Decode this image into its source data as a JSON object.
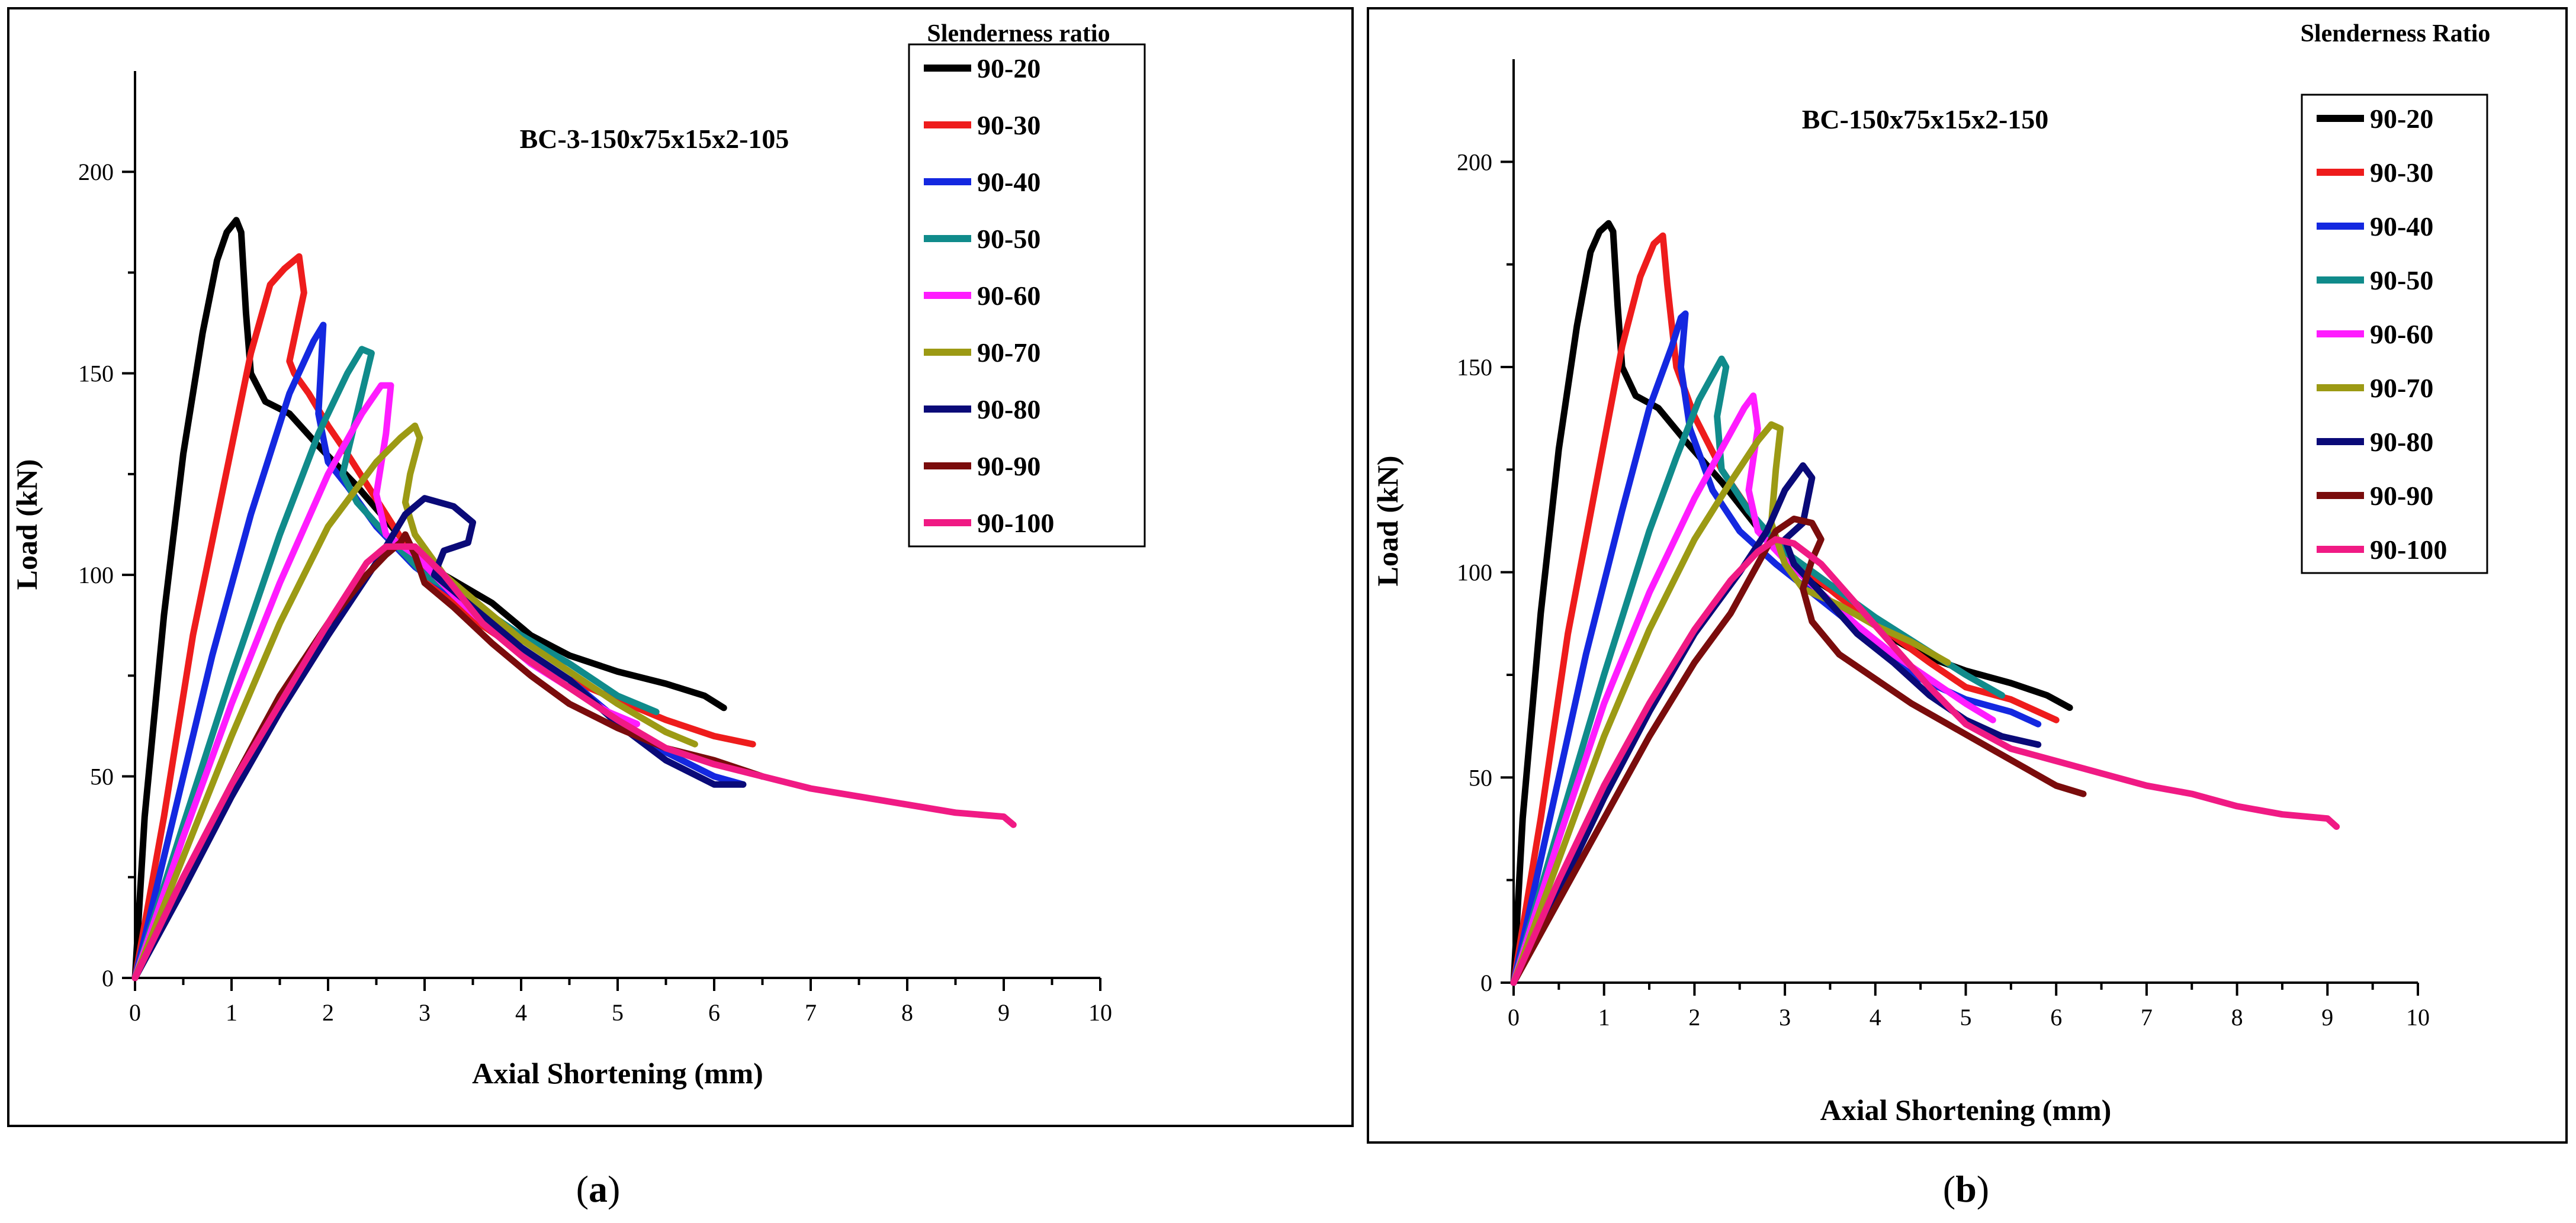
{
  "chart_data": [
    {
      "type": "line",
      "title": "BC-3-150x75x15x2-105",
      "xlabel": "Axial Shortening (mm)",
      "ylabel": "Load (kN)",
      "xlim": [
        0,
        10
      ],
      "ylim": [
        0,
        225
      ],
      "xticks": [
        0,
        1,
        2,
        3,
        4,
        5,
        6,
        7,
        8,
        9,
        10
      ],
      "yticks": [
        0,
        50,
        100,
        150,
        200
      ],
      "legend_title": "Slenderness ratio",
      "legend_position": "top-right",
      "caption": "a",
      "series": [
        {
          "name": "90-20",
          "color": "#000000",
          "x": [
            0,
            0.1,
            0.3,
            0.5,
            0.7,
            0.85,
            0.95,
            1.05,
            1.1,
            1.15,
            1.2,
            1.35,
            1.6,
            1.9,
            2.3,
            2.8,
            3.2,
            3.7,
            4.1,
            4.5,
            5.0,
            5.5,
            5.9,
            6.1
          ],
          "y": [
            0,
            40,
            90,
            130,
            160,
            178,
            185,
            188,
            185,
            165,
            150,
            143,
            140,
            132,
            122,
            108,
            100,
            93,
            85,
            80,
            76,
            73,
            70,
            67
          ]
        },
        {
          "name": "90-30",
          "color": "#ee1c1c",
          "x": [
            0,
            0.3,
            0.6,
            0.9,
            1.2,
            1.4,
            1.55,
            1.7,
            1.75,
            1.6,
            1.65,
            1.8,
            2.0,
            2.2,
            2.6,
            3.0,
            3.5,
            4.0,
            4.5,
            5.0,
            5.5,
            6.0,
            6.4
          ],
          "y": [
            0,
            40,
            85,
            120,
            155,
            172,
            176,
            179,
            170,
            153,
            150,
            145,
            137,
            130,
            115,
            100,
            89,
            81,
            74,
            69,
            64,
            60,
            58
          ]
        },
        {
          "name": "90-40",
          "color": "#1428e0",
          "x": [
            0,
            0.4,
            0.8,
            1.2,
            1.6,
            1.85,
            1.95,
            1.9,
            2.0,
            2.2,
            2.5,
            2.9,
            3.3,
            3.7,
            4.1,
            4.5,
            5.0,
            5.5,
            6.0,
            6.3
          ],
          "y": [
            0,
            40,
            80,
            115,
            145,
            158,
            162,
            140,
            128,
            122,
            112,
            102,
            95,
            88,
            80,
            74,
            64,
            56,
            50,
            48
          ]
        },
        {
          "name": "90-50",
          "color": "#108b8b",
          "x": [
            0,
            0.5,
            1.0,
            1.5,
            1.9,
            2.2,
            2.35,
            2.45,
            2.35,
            2.2,
            2.15,
            2.3,
            2.6,
            3.0,
            3.5,
            4.0,
            4.5,
            5.0,
            5.4
          ],
          "y": [
            0,
            38,
            75,
            110,
            135,
            150,
            156,
            155,
            145,
            130,
            125,
            118,
            110,
            100,
            93,
            85,
            78,
            70,
            66
          ]
        },
        {
          "name": "90-60",
          "color": "#ff1cff",
          "x": [
            0,
            0.5,
            1.0,
            1.5,
            2.0,
            2.35,
            2.55,
            2.65,
            2.6,
            2.5,
            2.6,
            2.9,
            3.3,
            3.7,
            4.1,
            4.5,
            4.9,
            5.2
          ],
          "y": [
            0,
            35,
            68,
            98,
            125,
            140,
            147,
            147,
            135,
            120,
            110,
            105,
            95,
            86,
            78,
            72,
            66,
            63
          ]
        },
        {
          "name": "90-70",
          "color": "#9c9a14",
          "x": [
            0,
            0.5,
            1.0,
            1.5,
            2.0,
            2.5,
            2.75,
            2.9,
            2.95,
            2.85,
            2.8,
            2.9,
            3.2,
            3.6,
            4.0,
            4.5,
            5.0,
            5.5,
            5.8
          ],
          "y": [
            0,
            30,
            60,
            88,
            112,
            128,
            134,
            137,
            134,
            125,
            118,
            110,
            100,
            92,
            84,
            76,
            68,
            61,
            58
          ]
        },
        {
          "name": "90-80",
          "color": "#0a0a78",
          "x": [
            0,
            0.5,
            1.0,
            1.5,
            2.0,
            2.5,
            2.8,
            3.0,
            3.3,
            3.5,
            3.45,
            3.2,
            3.1,
            3.3,
            3.6,
            4.0,
            4.5,
            5.0,
            5.5,
            6.0,
            6.3
          ],
          "y": [
            0,
            22,
            45,
            66,
            85,
            103,
            115,
            119,
            117,
            113,
            108,
            106,
            100,
            96,
            90,
            82,
            74,
            63,
            54,
            48,
            48
          ]
        },
        {
          "name": "90-90",
          "color": "#7a0c0c",
          "x": [
            0,
            0.5,
            1.0,
            1.5,
            2.0,
            2.4,
            2.6,
            2.75,
            2.8,
            2.9,
            3.0,
            3.3,
            3.7,
            4.1,
            4.5,
            5.0,
            5.5,
            6.0,
            6.5
          ],
          "y": [
            0,
            25,
            48,
            70,
            88,
            100,
            105,
            108,
            110,
            105,
            98,
            92,
            83,
            75,
            68,
            62,
            57,
            54,
            50
          ]
        },
        {
          "name": "90-100",
          "color": "#f01a84",
          "x": [
            0,
            0.5,
            1.0,
            1.5,
            2.0,
            2.4,
            2.6,
            2.9,
            3.2,
            3.6,
            4.0,
            4.5,
            5.0,
            5.5,
            6.0,
            6.5,
            7.0,
            7.5,
            8.0,
            8.5,
            9.0,
            9.1
          ],
          "y": [
            0,
            25,
            48,
            68,
            88,
            103,
            107,
            107,
            100,
            88,
            80,
            72,
            64,
            57,
            53,
            50,
            47,
            45,
            43,
            41,
            40,
            38
          ]
        }
      ]
    },
    {
      "type": "line",
      "title": "BC-150x75x15x2-150",
      "xlabel": "Axial Shortening (mm)",
      "ylabel": "Load (kN)",
      "xlim": [
        0,
        10
      ],
      "ylim": [
        0,
        225
      ],
      "xticks": [
        0,
        1,
        2,
        3,
        4,
        5,
        6,
        7,
        8,
        9,
        10
      ],
      "yticks": [
        0,
        50,
        100,
        150,
        200
      ],
      "legend_title": "Slenderness Ratio",
      "legend_position": "top-right",
      "caption": "b",
      "series": [
        {
          "name": "90-20",
          "color": "#000000",
          "x": [
            0,
            0.1,
            0.3,
            0.5,
            0.7,
            0.85,
            0.95,
            1.05,
            1.1,
            1.15,
            1.2,
            1.35,
            1.6,
            1.9,
            2.3,
            2.8,
            3.2,
            3.7,
            4.1,
            4.5,
            5.0,
            5.5,
            5.9,
            6.15
          ],
          "y": [
            0,
            40,
            90,
            130,
            160,
            178,
            183,
            185,
            183,
            165,
            150,
            143,
            140,
            132,
            122,
            108,
            100,
            93,
            85,
            80,
            76,
            73,
            70,
            67
          ]
        },
        {
          "name": "90-30",
          "color": "#ee1c1c",
          "x": [
            0,
            0.3,
            0.6,
            0.9,
            1.2,
            1.4,
            1.55,
            1.65,
            1.7,
            1.8,
            2.0,
            2.3,
            2.7,
            3.1,
            3.6,
            4.1,
            4.6,
            5.0,
            5.5,
            6.0
          ],
          "y": [
            0,
            40,
            85,
            120,
            155,
            172,
            180,
            182,
            170,
            150,
            138,
            125,
            112,
            103,
            94,
            86,
            78,
            72,
            69,
            64
          ]
        },
        {
          "name": "90-40",
          "color": "#1428e0",
          "x": [
            0,
            0.4,
            0.8,
            1.2,
            1.5,
            1.75,
            1.85,
            1.9,
            1.85,
            1.95,
            2.2,
            2.5,
            2.9,
            3.3,
            3.7,
            4.1,
            4.5,
            5.0,
            5.5,
            5.8
          ],
          "y": [
            0,
            40,
            80,
            115,
            140,
            155,
            162,
            163,
            150,
            135,
            120,
            110,
            102,
            95,
            88,
            80,
            74,
            69,
            66,
            63
          ]
        },
        {
          "name": "90-50",
          "color": "#108b8b",
          "x": [
            0,
            0.5,
            1.0,
            1.5,
            1.8,
            2.05,
            2.2,
            2.3,
            2.35,
            2.25,
            2.3,
            2.6,
            3.0,
            3.5,
            4.0,
            4.5,
            5.0,
            5.4
          ],
          "y": [
            0,
            38,
            75,
            110,
            128,
            142,
            148,
            152,
            150,
            138,
            125,
            115,
            105,
            97,
            89,
            82,
            75,
            70
          ]
        },
        {
          "name": "90-60",
          "color": "#ff1cff",
          "x": [
            0,
            0.5,
            1.0,
            1.5,
            2.0,
            2.3,
            2.55,
            2.65,
            2.7,
            2.6,
            2.7,
            3.0,
            3.4,
            3.8,
            4.2,
            4.6,
            5.0,
            5.3
          ],
          "y": [
            0,
            35,
            68,
            95,
            118,
            130,
            140,
            143,
            135,
            120,
            110,
            103,
            95,
            87,
            80,
            74,
            68,
            64
          ]
        },
        {
          "name": "90-70",
          "color": "#9c9a14",
          "x": [
            0,
            0.5,
            1.0,
            1.5,
            2.0,
            2.4,
            2.7,
            2.85,
            2.95,
            2.9,
            2.85,
            3.0,
            3.2,
            3.3,
            3.6,
            4.0,
            4.4,
            4.8
          ],
          "y": [
            0,
            30,
            60,
            86,
            108,
            122,
            132,
            136,
            135,
            125,
            112,
            102,
            96,
            95,
            92,
            87,
            83,
            78
          ]
        },
        {
          "name": "90-80",
          "color": "#0a0a78",
          "x": [
            0,
            0.5,
            1.0,
            1.5,
            2.0,
            2.5,
            2.8,
            3.0,
            3.2,
            3.3,
            3.2,
            3.0,
            3.1,
            3.4,
            3.8,
            4.2,
            4.6,
            5.0,
            5.4,
            5.8
          ],
          "y": [
            0,
            22,
            45,
            66,
            85,
            100,
            110,
            120,
            126,
            123,
            112,
            108,
            102,
            95,
            85,
            78,
            70,
            64,
            60,
            58
          ]
        },
        {
          "name": "90-90",
          "color": "#7a0c0c",
          "x": [
            0,
            0.5,
            1.0,
            1.5,
            2.0,
            2.4,
            2.7,
            2.9,
            3.1,
            3.3,
            3.4,
            3.3,
            3.2,
            3.3,
            3.6,
            4.0,
            4.4,
            4.8,
            5.2,
            5.6,
            6.0,
            6.3
          ],
          "y": [
            0,
            20,
            40,
            60,
            78,
            90,
            102,
            110,
            113,
            112,
            108,
            103,
            96,
            88,
            80,
            74,
            68,
            63,
            58,
            53,
            48,
            46
          ]
        },
        {
          "name": "90-100",
          "color": "#f01a84",
          "x": [
            0,
            0.5,
            1.0,
            1.5,
            2.0,
            2.4,
            2.7,
            2.9,
            3.1,
            3.4,
            3.8,
            4.2,
            4.6,
            5.0,
            5.5,
            6.0,
            6.5,
            7.0,
            7.5,
            8.0,
            8.5,
            9.0,
            9.1
          ],
          "y": [
            0,
            25,
            48,
            68,
            86,
            98,
            105,
            108,
            107,
            102,
            92,
            82,
            72,
            63,
            57,
            54,
            51,
            48,
            46,
            43,
            41,
            40,
            38
          ]
        }
      ]
    }
  ]
}
